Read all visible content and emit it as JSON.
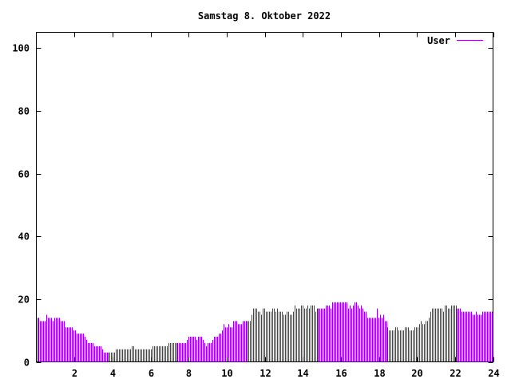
{
  "chart_data": {
    "type": "bar",
    "title": "Samstag 8. Oktober 2022",
    "xlabel": "",
    "ylabel": "",
    "xlim": [
      0,
      24
    ],
    "ylim": [
      0,
      105
    ],
    "x_ticks": [
      "2",
      "4",
      "6",
      "8",
      "10",
      "12",
      "14",
      "16",
      "18",
      "20",
      "22",
      "24"
    ],
    "y_ticks": [
      "0",
      "20",
      "40",
      "60",
      "80",
      "100"
    ],
    "grid": false,
    "legend_position": "top-right",
    "interval_minutes": 5,
    "series": [
      {
        "name": "User",
        "color": "#9400d3",
        "values": [
          14,
          14,
          13,
          13,
          13,
          13,
          15,
          14,
          14,
          14,
          13,
          14,
          14,
          14,
          14,
          13,
          13,
          13,
          11,
          11,
          11,
          11,
          11,
          10,
          10,
          9,
          9,
          9,
          9,
          9,
          8,
          7,
          6,
          6,
          6,
          6,
          5,
          5,
          5,
          5,
          5,
          4,
          3,
          3,
          3,
          3,
          3,
          3,
          3,
          3,
          4,
          4,
          4,
          4,
          4,
          4,
          4,
          4,
          4,
          4,
          5,
          5,
          4,
          4,
          4,
          4,
          4,
          4,
          4,
          4,
          4,
          4,
          4,
          5,
          5,
          5,
          5,
          5,
          5,
          5,
          5,
          5,
          5,
          6,
          6,
          6,
          6,
          6,
          6,
          6,
          6,
          6,
          6,
          6,
          6,
          7,
          8,
          8,
          8,
          8,
          8,
          7,
          8,
          8,
          8,
          7,
          6,
          5,
          6,
          6,
          6,
          7,
          8,
          8,
          8,
          9,
          9,
          10,
          12,
          11,
          11,
          12,
          11,
          11,
          13,
          13,
          13,
          12,
          12,
          12,
          13,
          13,
          13,
          13,
          13,
          13,
          15,
          17,
          17,
          17,
          16,
          16,
          15,
          17,
          17,
          16,
          16,
          16,
          16,
          17,
          17,
          16,
          17,
          16,
          16,
          16,
          15,
          15,
          16,
          16,
          15,
          15,
          16,
          18,
          17,
          17,
          17,
          18,
          18,
          17,
          17,
          18,
          17,
          18,
          18,
          18,
          16,
          17,
          17,
          17,
          17,
          17,
          17,
          18,
          18,
          18,
          17,
          19,
          19,
          19,
          19,
          19,
          19,
          19,
          19,
          19,
          19,
          17,
          18,
          17,
          18,
          19,
          19,
          18,
          17,
          18,
          17,
          16,
          16,
          14,
          14,
          14,
          14,
          14,
          14,
          17,
          14,
          15,
          14,
          15,
          13,
          13,
          11,
          10,
          10,
          10,
          10,
          11,
          11,
          10,
          10,
          10,
          10,
          11,
          11,
          11,
          10,
          10,
          10,
          11,
          11,
          11,
          12,
          13,
          12,
          12,
          13,
          13,
          14,
          16,
          17,
          17,
          17,
          17,
          17,
          17,
          17,
          16,
          18,
          18,
          17,
          17,
          18,
          18,
          18,
          18,
          17,
          17,
          17,
          16,
          16,
          16,
          16,
          16,
          16,
          16,
          15,
          15,
          16,
          15,
          15,
          15,
          16,
          16,
          16,
          16,
          16,
          16,
          16
        ]
      }
    ]
  }
}
